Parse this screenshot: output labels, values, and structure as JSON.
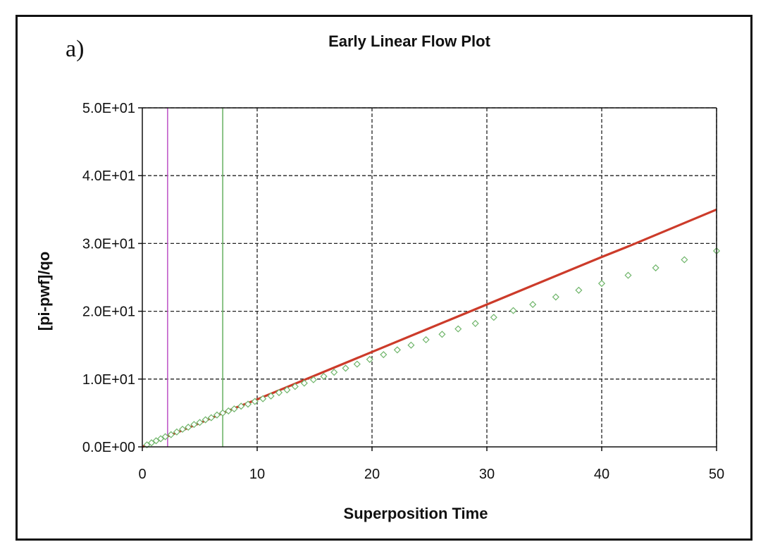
{
  "panel_label": "a)",
  "chart_data": {
    "type": "line",
    "title": "Early Linear Flow Plot",
    "xlabel": "Superposition Time",
    "ylabel": "[pi-pwf]/qo",
    "xlim": [
      0,
      50
    ],
    "ylim": [
      0,
      50
    ],
    "x_ticks": [
      0,
      10,
      20,
      30,
      40,
      50
    ],
    "x_tick_labels": [
      "0",
      "10",
      "20",
      "30",
      "40",
      "50"
    ],
    "y_ticks": [
      0,
      10,
      20,
      30,
      40,
      50
    ],
    "y_tick_labels": [
      "0.0E+00",
      "1.0E+01",
      "2.0E+01",
      "3.0E+01",
      "4.0E+01",
      "5.0E+01"
    ],
    "grid": true,
    "grid_style": "dashed",
    "vertical_markers": [
      {
        "x": 2.2,
        "color": "#c05ac8"
      },
      {
        "x": 7.0,
        "color": "#6fb56a"
      }
    ],
    "series": [
      {
        "style": "line",
        "color": "#cc3b2a",
        "x": [
          0,
          2,
          5,
          8,
          10,
          14,
          17,
          20,
          25,
          30,
          34,
          40,
          42.5,
          50
        ],
        "y": [
          0,
          1.4,
          3.5,
          5.7,
          7.0,
          9.8,
          11.9,
          14.0,
          17.5,
          21.0,
          23.8,
          28.0,
          29.7,
          35.0
        ]
      },
      {
        "style": "markers",
        "marker": "diamond",
        "color": "#6fb56a",
        "x": [
          0.4,
          0.8,
          1.2,
          1.6,
          2.0,
          2.5,
          3.0,
          3.5,
          4.0,
          4.5,
          5.0,
          5.5,
          6.0,
          6.5,
          7.0,
          7.5,
          8.0,
          8.6,
          9.2,
          9.8,
          10.5,
          11.2,
          11.9,
          12.6,
          13.3,
          14.1,
          14.9,
          15.8,
          16.7,
          17.7,
          18.7,
          19.8,
          21.0,
          22.2,
          23.4,
          24.7,
          26.1,
          27.5,
          29.0,
          30.6,
          32.3,
          34.0,
          36.0,
          38.0,
          40.0,
          42.3,
          44.7,
          47.2,
          50.0
        ],
        "y": [
          0.3,
          0.6,
          0.9,
          1.2,
          1.5,
          1.8,
          2.2,
          2.6,
          2.9,
          3.3,
          3.6,
          4.0,
          4.3,
          4.7,
          5.0,
          5.3,
          5.6,
          6.0,
          6.3,
          6.7,
          7.1,
          7.5,
          8.0,
          8.4,
          8.9,
          9.4,
          9.9,
          10.4,
          11.0,
          11.6,
          12.2,
          12.9,
          13.6,
          14.3,
          15.0,
          15.8,
          16.6,
          17.4,
          18.2,
          19.1,
          20.1,
          21.0,
          22.1,
          23.1,
          24.1,
          25.3,
          26.4,
          27.6,
          28.9
        ]
      }
    ]
  }
}
